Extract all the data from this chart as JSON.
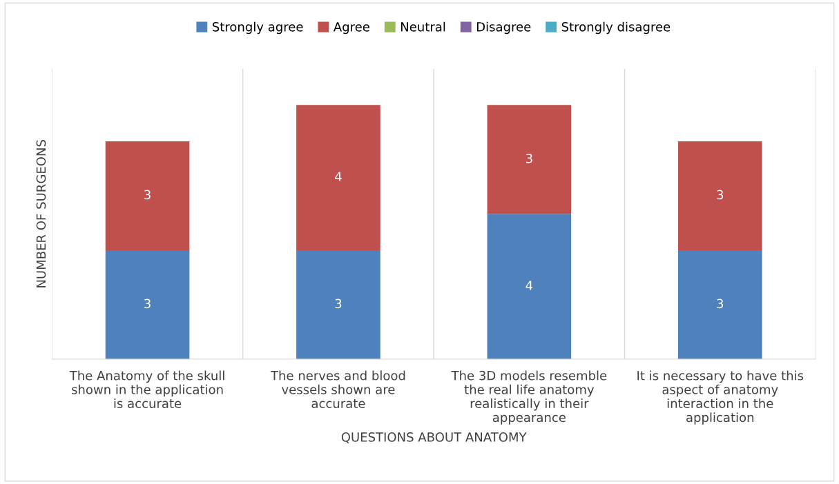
{
  "chart_data": {
    "type": "bar",
    "stacked": true,
    "data_labels": true,
    "xlabel": "QUESTIONS ABOUT ANATOMY",
    "ylabel": "NUMBER OF SURGEONS",
    "categories": [
      "The Anatomy of the skull\nshown in the application\nis accurate",
      "The nerves and blood\nvessels shown are\naccurate",
      "The 3D models resemble\nthe real life anatomy\nrealistically in their\nappearance",
      "It is necessary to have this\naspect of anatomy\ninteraction in the\napplication"
    ],
    "series": [
      {
        "name": "Strongly agree",
        "color": "#4f81bd",
        "values": [
          3,
          3,
          4,
          3
        ]
      },
      {
        "name": "Agree",
        "color": "#c0504d",
        "values": [
          3,
          4,
          3,
          3
        ]
      },
      {
        "name": "Neutral",
        "color": "#9bbb59",
        "values": [
          null,
          null,
          null,
          null
        ]
      },
      {
        "name": "Disagree",
        "color": "#8064a2",
        "values": [
          null,
          null,
          null,
          null
        ]
      },
      {
        "name": "Strongly disagree",
        "color": "#4bacc6",
        "values": [
          null,
          null,
          null,
          null
        ]
      }
    ],
    "ylim": [
      0,
      8
    ],
    "tick_labels": "x",
    "grid": "x",
    "legend": "top"
  }
}
